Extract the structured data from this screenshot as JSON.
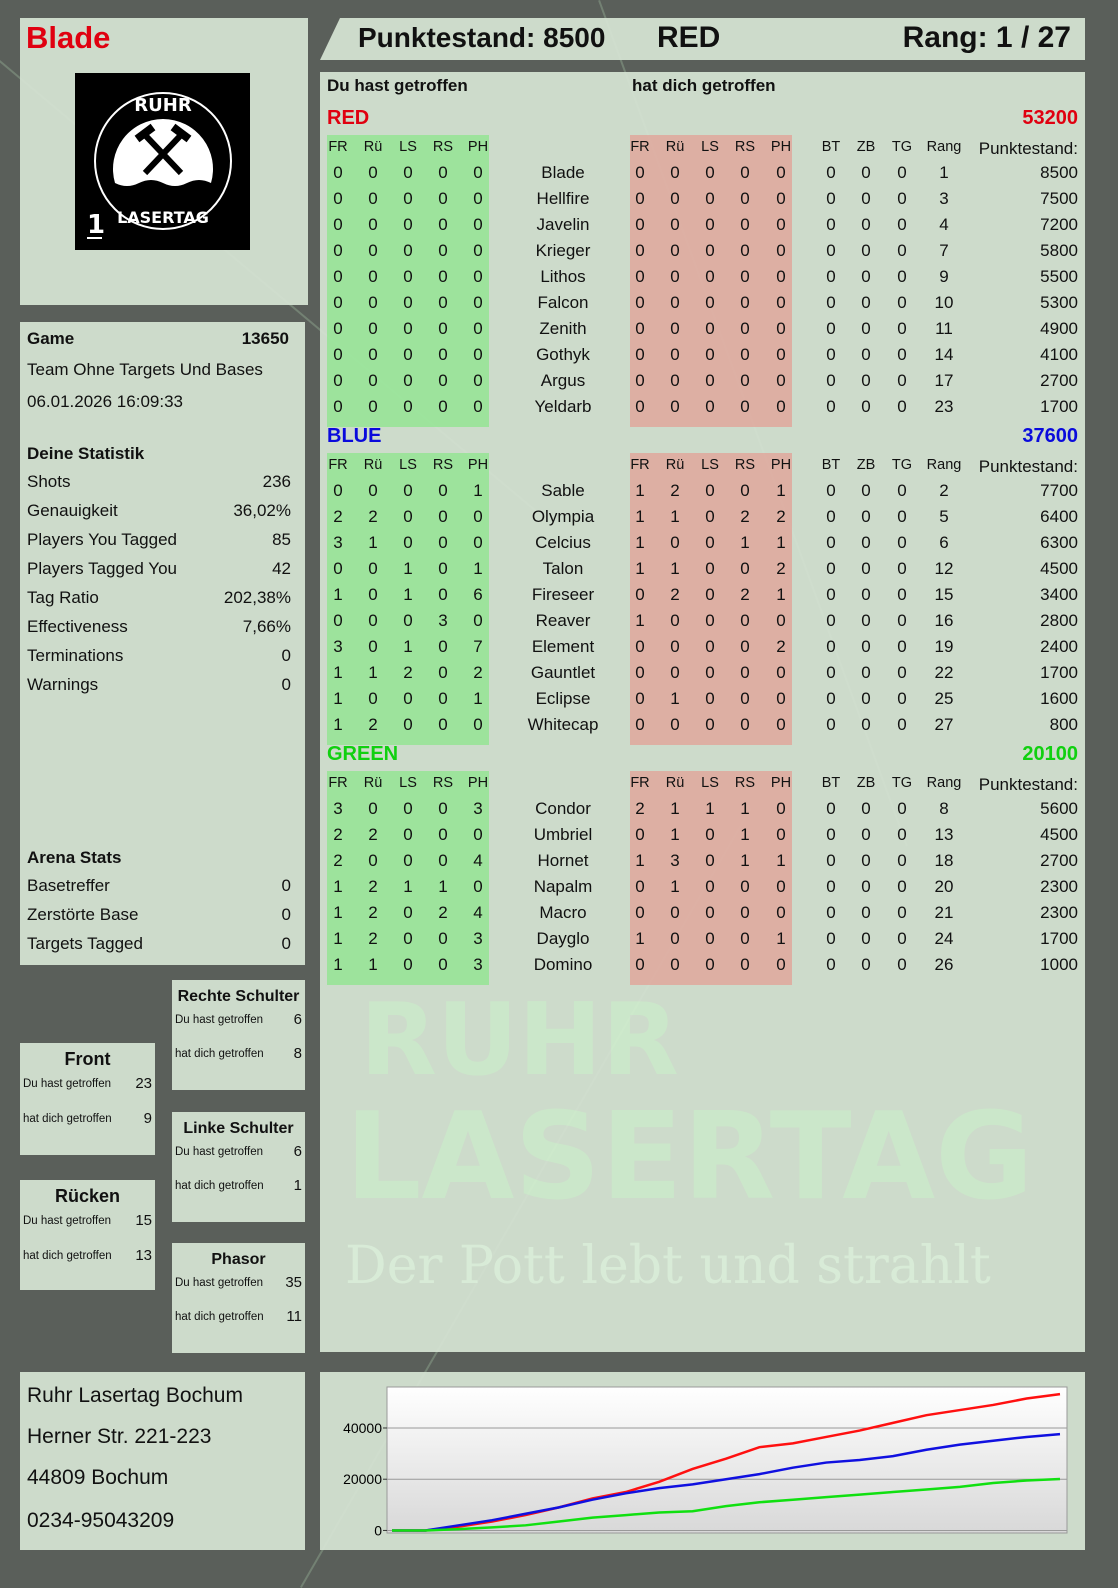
{
  "player": {
    "name": "Blade",
    "logo_text_top": "RUHR",
    "logo_text_bottom": "LASERTAG",
    "logo_number": "1"
  },
  "header": {
    "score_label": "Punktestand: 8500",
    "team": "RED",
    "rank": "Rang: 1 / 27"
  },
  "table_headers": {
    "you_hit": "Du hast getroffen",
    "hit_you": "hat dich getroffen"
  },
  "columns": {
    "hit": [
      "FR",
      "Rü",
      "LS",
      "RS",
      "PH"
    ],
    "stats": [
      "BT",
      "ZB",
      "TG",
      "Rang"
    ],
    "score": "Punktestand:"
  },
  "teams": [
    {
      "name": "RED",
      "total": "53200",
      "color": "#e00010",
      "players": [
        [
          "0",
          "0",
          "0",
          "0",
          "0",
          "Blade",
          "0",
          "0",
          "0",
          "0",
          "0",
          "0",
          "0",
          "0",
          "1",
          "8500"
        ],
        [
          "0",
          "0",
          "0",
          "0",
          "0",
          "Hellfire",
          "0",
          "0",
          "0",
          "0",
          "0",
          "0",
          "0",
          "0",
          "3",
          "7500"
        ],
        [
          "0",
          "0",
          "0",
          "0",
          "0",
          "Javelin",
          "0",
          "0",
          "0",
          "0",
          "0",
          "0",
          "0",
          "0",
          "4",
          "7200"
        ],
        [
          "0",
          "0",
          "0",
          "0",
          "0",
          "Krieger",
          "0",
          "0",
          "0",
          "0",
          "0",
          "0",
          "0",
          "0",
          "7",
          "5800"
        ],
        [
          "0",
          "0",
          "0",
          "0",
          "0",
          "Lithos",
          "0",
          "0",
          "0",
          "0",
          "0",
          "0",
          "0",
          "0",
          "9",
          "5500"
        ],
        [
          "0",
          "0",
          "0",
          "0",
          "0",
          "Falcon",
          "0",
          "0",
          "0",
          "0",
          "0",
          "0",
          "0",
          "0",
          "10",
          "5300"
        ],
        [
          "0",
          "0",
          "0",
          "0",
          "0",
          "Zenith",
          "0",
          "0",
          "0",
          "0",
          "0",
          "0",
          "0",
          "0",
          "11",
          "4900"
        ],
        [
          "0",
          "0",
          "0",
          "0",
          "0",
          "Gothyk",
          "0",
          "0",
          "0",
          "0",
          "0",
          "0",
          "0",
          "0",
          "14",
          "4100"
        ],
        [
          "0",
          "0",
          "0",
          "0",
          "0",
          "Argus",
          "0",
          "0",
          "0",
          "0",
          "0",
          "0",
          "0",
          "0",
          "17",
          "2700"
        ],
        [
          "0",
          "0",
          "0",
          "0",
          "0",
          "Yeldarb",
          "0",
          "0",
          "0",
          "0",
          "0",
          "0",
          "0",
          "0",
          "23",
          "1700"
        ]
      ]
    },
    {
      "name": "BLUE",
      "total": "37600",
      "color": "#0a0adc",
      "players": [
        [
          "0",
          "0",
          "0",
          "0",
          "1",
          "Sable",
          "1",
          "2",
          "0",
          "0",
          "1",
          "0",
          "0",
          "0",
          "2",
          "7700"
        ],
        [
          "2",
          "2",
          "0",
          "0",
          "0",
          "Olympia",
          "1",
          "1",
          "0",
          "2",
          "2",
          "0",
          "0",
          "0",
          "5",
          "6400"
        ],
        [
          "3",
          "1",
          "0",
          "0",
          "0",
          "Celcius",
          "1",
          "0",
          "0",
          "1",
          "1",
          "0",
          "0",
          "0",
          "6",
          "6300"
        ],
        [
          "0",
          "0",
          "1",
          "0",
          "1",
          "Talon",
          "1",
          "1",
          "0",
          "0",
          "2",
          "0",
          "0",
          "0",
          "12",
          "4500"
        ],
        [
          "1",
          "0",
          "1",
          "0",
          "6",
          "Fireseer",
          "0",
          "2",
          "0",
          "2",
          "1",
          "0",
          "0",
          "0",
          "15",
          "3400"
        ],
        [
          "0",
          "0",
          "0",
          "3",
          "0",
          "Reaver",
          "1",
          "0",
          "0",
          "0",
          "0",
          "0",
          "0",
          "0",
          "16",
          "2800"
        ],
        [
          "3",
          "0",
          "1",
          "0",
          "7",
          "Element",
          "0",
          "0",
          "0",
          "0",
          "2",
          "0",
          "0",
          "0",
          "19",
          "2400"
        ],
        [
          "1",
          "1",
          "2",
          "0",
          "2",
          "Gauntlet",
          "0",
          "0",
          "0",
          "0",
          "0",
          "0",
          "0",
          "0",
          "22",
          "1700"
        ],
        [
          "1",
          "0",
          "0",
          "0",
          "1",
          "Eclipse",
          "0",
          "1",
          "0",
          "0",
          "0",
          "0",
          "0",
          "0",
          "25",
          "1600"
        ],
        [
          "1",
          "2",
          "0",
          "0",
          "0",
          "Whitecap",
          "0",
          "0",
          "0",
          "0",
          "0",
          "0",
          "0",
          "0",
          "27",
          "800"
        ]
      ]
    },
    {
      "name": "GREEN",
      "total": "20100",
      "color": "#10d010",
      "players": [
        [
          "3",
          "0",
          "0",
          "0",
          "3",
          "Condor",
          "2",
          "1",
          "1",
          "1",
          "0",
          "0",
          "0",
          "0",
          "8",
          "5600"
        ],
        [
          "2",
          "2",
          "0",
          "0",
          "0",
          "Umbriel",
          "0",
          "1",
          "0",
          "1",
          "0",
          "0",
          "0",
          "0",
          "13",
          "4500"
        ],
        [
          "2",
          "0",
          "0",
          "0",
          "4",
          "Hornet",
          "1",
          "3",
          "0",
          "1",
          "1",
          "0",
          "0",
          "0",
          "18",
          "2700"
        ],
        [
          "1",
          "2",
          "1",
          "1",
          "0",
          "Napalm",
          "0",
          "1",
          "0",
          "0",
          "0",
          "0",
          "0",
          "0",
          "20",
          "2300"
        ],
        [
          "1",
          "2",
          "0",
          "2",
          "4",
          "Macro",
          "0",
          "0",
          "0",
          "0",
          "0",
          "0",
          "0",
          "0",
          "21",
          "2300"
        ],
        [
          "1",
          "2",
          "0",
          "0",
          "3",
          "Dayglo",
          "1",
          "0",
          "0",
          "0",
          "1",
          "0",
          "0",
          "0",
          "24",
          "1700"
        ],
        [
          "1",
          "1",
          "0",
          "0",
          "3",
          "Domino",
          "0",
          "0",
          "0",
          "0",
          "0",
          "0",
          "0",
          "0",
          "26",
          "1000"
        ]
      ]
    }
  ],
  "game": {
    "label": "Game",
    "id": "13650",
    "mode": "Team Ohne Targets Und Bases",
    "datetime": "06.01.2026 16:09:33"
  },
  "stats": {
    "title": "Deine Statistik",
    "rows": [
      [
        "Shots",
        "236"
      ],
      [
        "Genauigkeit",
        "36,02%"
      ],
      [
        "Players You Tagged",
        "85"
      ],
      [
        "Players Tagged You",
        "42"
      ],
      [
        "Tag Ratio",
        "202,38%"
      ],
      [
        "Effectiveness",
        "7,66%"
      ],
      [
        "Terminations",
        "0"
      ],
      [
        "Warnings",
        "0"
      ]
    ]
  },
  "arena": {
    "title": "Arena Stats",
    "rows": [
      [
        "Basetreffer",
        "0"
      ],
      [
        "Zerstörte Base",
        "0"
      ],
      [
        "Targets Tagged",
        "0"
      ]
    ]
  },
  "zones": [
    {
      "name": "Front",
      "you_hit_label": "Du hast getroffen",
      "you_hit": "23",
      "hit_you_label": "hat dich getroffen",
      "hit_you": "9"
    },
    {
      "name": "Rücken",
      "you_hit_label": "Du hast getroffen",
      "you_hit": "15",
      "hit_you_label": "hat dich getroffen",
      "hit_you": "13"
    },
    {
      "name": "Rechte Schulter",
      "you_hit_label": "Du hast getroffen",
      "you_hit": "6",
      "hit_you_label": "hat dich getroffen",
      "hit_you": "8"
    },
    {
      "name": "Linke Schulter",
      "you_hit_label": "Du hast getroffen",
      "you_hit": "6",
      "hit_you_label": "hat dich getroffen",
      "hit_you": "1"
    },
    {
      "name": "Phasor",
      "you_hit_label": "Du hast getroffen",
      "you_hit": "35",
      "hit_you_label": "hat dich getroffen",
      "hit_you": "11"
    }
  ],
  "address": [
    "Ruhr Lasertag Bochum",
    "Herner Str. 221-223",
    "44809 Bochum",
    "0234-95043209"
  ],
  "watermark": {
    "line1": "RUHR",
    "line2": "LASERTAG",
    "slogan": "Der Pott lebt und strahlt"
  },
  "chart_data": {
    "type": "line",
    "title": "",
    "xlabel": "",
    "ylabel": "",
    "ylim": [
      -1000,
      56000
    ],
    "yticks": [
      "0",
      "20000",
      "40000"
    ],
    "grid": true,
    "series": [
      {
        "color": "#ff1010",
        "values": [
          0,
          0,
          1500,
          3500,
          6000,
          9000,
          12500,
          15000,
          19000,
          24000,
          28000,
          32500,
          34000,
          36500,
          39000,
          42000,
          45000,
          47000,
          49000,
          51500,
          53200
        ]
      },
      {
        "color": "#1010e0",
        "values": [
          0,
          0,
          2000,
          4000,
          6500,
          9000,
          12000,
          14500,
          16500,
          18000,
          20000,
          22000,
          24500,
          26500,
          27500,
          29000,
          31500,
          33500,
          35000,
          36500,
          37600
        ]
      },
      {
        "color": "#10e010",
        "values": [
          0,
          0,
          500,
          1200,
          2000,
          3500,
          5000,
          6000,
          7000,
          7500,
          9500,
          11000,
          12000,
          13000,
          14000,
          15000,
          16000,
          17000,
          18500,
          19500,
          20100
        ]
      }
    ]
  }
}
